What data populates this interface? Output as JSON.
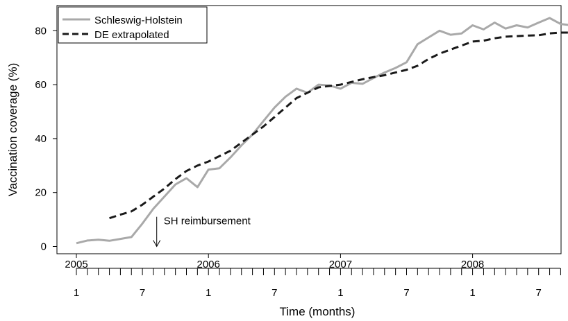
{
  "chart_data": {
    "type": "line",
    "ylabel": "Vaccination coverage (%)",
    "xlabel": "Time (months)",
    "ylim": [
      0,
      85
    ],
    "xlim_months": [
      1,
      46
    ],
    "y_ticks": [
      "0",
      "20",
      "40",
      "60",
      "80"
    ],
    "x_year_ticks": [
      {
        "label": "2005",
        "month": 1
      },
      {
        "label": "2006",
        "month": 13
      },
      {
        "label": "2007",
        "month": 25
      },
      {
        "label": "2008",
        "month": 37
      }
    ],
    "x_month_labels": [
      {
        "label": "1",
        "month": 1
      },
      {
        "label": "7",
        "month": 7
      },
      {
        "label": "1",
        "month": 13
      },
      {
        "label": "7",
        "month": 19
      },
      {
        "label": "1",
        "month": 25
      },
      {
        "label": "7",
        "month": 31
      },
      {
        "label": "1",
        "month": 37
      },
      {
        "label": "7",
        "month": 43
      }
    ],
    "series": [
      {
        "name": "Schleswig-Holstein",
        "color": "#a9a9a9",
        "style": "solid",
        "x": [
          1,
          2,
          3,
          4,
          5,
          6,
          7,
          8,
          9,
          10,
          11,
          12,
          13,
          14,
          15,
          16,
          17,
          18,
          19,
          20,
          21,
          22,
          23,
          24,
          25,
          26,
          27,
          28,
          29,
          30,
          31,
          32,
          33,
          34,
          35,
          36,
          37,
          38,
          39,
          40,
          41,
          42,
          43,
          44,
          45,
          46
        ],
        "y": [
          1.2,
          2.2,
          2.5,
          2.1,
          2.8,
          3.5,
          8.5,
          14,
          18.5,
          23,
          25.3,
          22,
          28.5,
          29,
          33,
          37.5,
          41.5,
          46.5,
          51.5,
          55.5,
          58.5,
          57,
          60,
          59.7,
          58.5,
          60.7,
          60.3,
          62.5,
          64.5,
          66.2,
          68.3,
          75,
          77.5,
          80,
          78.5,
          79,
          82,
          80.5,
          83,
          80.8,
          82,
          81.2,
          83,
          84.7,
          82.5,
          82
        ]
      },
      {
        "name": "DE extrapolated",
        "color": "#1a1a1a",
        "style": "dashed",
        "x": [
          4,
          5,
          6,
          7,
          8,
          9,
          10,
          11,
          12,
          13,
          14,
          15,
          16,
          17,
          18,
          19,
          20,
          21,
          22,
          23,
          24,
          25,
          26,
          27,
          28,
          29,
          30,
          31,
          32,
          33,
          34,
          35,
          36,
          37,
          38,
          39,
          40,
          41,
          42,
          43,
          44,
          45,
          46
        ],
        "y": [
          10.5,
          11.8,
          13,
          15.5,
          18.5,
          21.5,
          25,
          28,
          30,
          31.5,
          33.5,
          35.5,
          38.5,
          41.5,
          44.5,
          48,
          51.5,
          55,
          57,
          59,
          59.5,
          60,
          61,
          62,
          62.8,
          63.5,
          64.5,
          65.5,
          67,
          69.5,
          71.5,
          73,
          74.5,
          76,
          76.3,
          77.2,
          77.8,
          78,
          78.2,
          78.3,
          79,
          79.3,
          79.3
        ]
      }
    ],
    "annotations": [
      {
        "text": "SH reimbursement",
        "month": 8.3,
        "value_top": 11,
        "value_bottom": 0
      }
    ],
    "legend": {
      "position": "top-left"
    }
  }
}
